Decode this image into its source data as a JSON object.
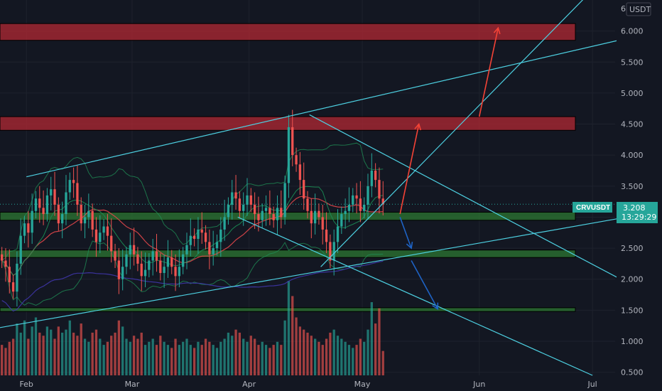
{
  "header": {
    "currency_label": "USDT",
    "top_tick_partial": "6"
  },
  "ticker": {
    "symbol": "CRVUSDT",
    "last_price": "3.208",
    "countdown": "13:29:29"
  },
  "colors": {
    "background": "#131722",
    "grid": "#1e222d",
    "up": "#26a69a",
    "down": "#ef5350",
    "resistance_zone": "#b22833",
    "support_zone": "#2e7d32",
    "trendline": "#4dd0e1",
    "arrow_up": "#f44336",
    "arrow_down": "#1e63c5",
    "ma_red": "#e0464a",
    "ma_green": "#1b8f55",
    "ma_purple": "#3f35a8",
    "bb": "#1f8c55"
  },
  "chart_data": {
    "type": "candlestick",
    "pair": "CRVUSDT",
    "quote_currency": "USDT",
    "ylim": [
      0.45,
      6.5
    ],
    "y_ticks": [
      "6.000",
      "5.500",
      "5.000",
      "4.500",
      "4.000",
      "3.500",
      "3.000",
      "2.500",
      "2.000",
      "1.500",
      "1.000",
      "0.500"
    ],
    "x_ticks": [
      "Feb",
      "Mar",
      "Apr",
      "May",
      "Jun",
      "Jul"
    ],
    "x_range": [
      "2022-01-25",
      "2022-07-07"
    ],
    "last_price": 3.208,
    "resistance_zones": [
      [
        5.85,
        6.12
      ],
      [
        4.4,
        4.62
      ]
    ],
    "support_zones": [
      [
        2.95,
        3.08
      ],
      [
        2.35,
        2.47
      ],
      [
        1.48,
        1.54
      ]
    ],
    "trend_lines": [
      {
        "from": [
          "2022-02-01",
          3.65
        ],
        "to": [
          "2022-07-10",
          5.88
        ]
      },
      {
        "from": [
          "2022-01-25",
          1.22
        ],
        "to": [
          "2022-07-10",
          3.0
        ]
      },
      {
        "from": [
          "2022-04-17",
          4.65
        ],
        "to": [
          "2022-07-10",
          1.95
        ]
      },
      {
        "from": [
          "2022-03-29",
          3.0
        ],
        "to": [
          "2022-07-01",
          0.45
        ]
      },
      {
        "from": [
          "2022-04-20",
          2.2
        ],
        "to": [
          "2022-06-30",
          6.6
        ]
      }
    ],
    "arrows": [
      {
        "direction": "up",
        "from": [
          "2022-05-11",
          3.05
        ],
        "to": [
          "2022-05-16",
          4.5
        ]
      },
      {
        "direction": "up",
        "from": [
          "2022-06-01",
          4.62
        ],
        "to": [
          "2022-06-06",
          6.05
        ]
      },
      {
        "direction": "down",
        "from": [
          "2022-05-11",
          3.0
        ],
        "to": [
          "2022-05-14",
          2.5
        ]
      },
      {
        "direction": "down",
        "from": [
          "2022-05-14",
          2.3
        ],
        "to": [
          "2022-05-21",
          1.52
        ]
      }
    ],
    "series": [
      {
        "kind": "ohlc",
        "start": "2022-01-25",
        "interval_days": 1,
        "open": [
          2.4,
          2.3,
          2.2,
          1.95,
          1.8,
          2.25,
          2.7,
          2.9,
          2.75,
          3.1,
          3.3,
          3.15,
          3.05,
          3.35,
          3.45,
          3.2,
          2.9,
          3.05,
          3.4,
          3.6,
          3.55,
          3.2,
          2.9,
          3.0,
          3.1,
          2.8,
          2.6,
          2.75,
          2.85,
          2.7,
          2.45,
          2.3,
          2.0,
          2.2,
          2.4,
          2.55,
          2.4,
          2.25,
          2.05,
          2.15,
          2.3,
          2.45,
          2.3,
          2.1,
          2.2,
          2.35,
          2.2,
          2.05,
          2.2,
          2.4,
          2.55,
          2.7,
          2.65,
          2.8,
          2.75,
          2.6,
          2.4,
          2.5,
          2.6,
          2.8,
          3.0,
          3.2,
          3.4,
          3.3,
          3.1,
          3.2,
          3.35,
          3.2,
          3.05,
          2.95,
          3.1,
          3.15,
          3.05,
          2.95,
          3.15,
          3.0,
          3.55,
          4.45,
          4.0,
          3.85,
          3.6,
          3.3,
          3.1,
          2.9,
          3.1,
          3.0,
          2.8,
          2.6,
          2.3,
          2.6,
          2.85,
          3.05,
          3.1,
          3.2,
          3.35,
          3.3,
          3.1,
          3.2,
          3.5,
          3.75,
          3.6,
          3.3
        ],
        "close": [
          2.3,
          2.2,
          1.95,
          1.8,
          2.25,
          2.7,
          2.9,
          2.75,
          3.1,
          3.3,
          3.15,
          3.05,
          3.35,
          3.45,
          3.2,
          2.9,
          3.05,
          3.4,
          3.6,
          3.55,
          3.2,
          2.9,
          3.0,
          3.1,
          2.8,
          2.6,
          2.75,
          2.85,
          2.7,
          2.45,
          2.3,
          2.0,
          2.2,
          2.4,
          2.55,
          2.4,
          2.25,
          2.05,
          2.15,
          2.3,
          2.45,
          2.3,
          2.1,
          2.2,
          2.35,
          2.2,
          2.05,
          2.2,
          2.4,
          2.55,
          2.7,
          2.65,
          2.8,
          2.75,
          2.6,
          2.4,
          2.5,
          2.6,
          2.8,
          3.0,
          3.2,
          3.4,
          3.3,
          3.1,
          3.2,
          3.35,
          3.2,
          3.05,
          2.95,
          3.1,
          3.15,
          3.05,
          2.95,
          3.15,
          3.0,
          3.55,
          4.45,
          4.0,
          3.85,
          3.6,
          3.3,
          3.1,
          2.9,
          3.1,
          3.0,
          2.8,
          2.6,
          2.3,
          2.6,
          2.85,
          3.05,
          3.1,
          3.2,
          3.35,
          3.3,
          3.1,
          3.2,
          3.5,
          3.75,
          3.6,
          3.3,
          3.208
        ],
        "volume": [
          0.5,
          0.45,
          0.55,
          0.6,
          0.85,
          0.7,
          0.9,
          0.6,
          0.8,
          0.95,
          0.7,
          0.65,
          0.8,
          0.75,
          0.6,
          0.8,
          0.7,
          0.75,
          0.9,
          0.7,
          0.65,
          0.85,
          0.6,
          0.55,
          0.7,
          0.75,
          0.6,
          0.5,
          0.55,
          0.65,
          0.7,
          0.9,
          0.8,
          0.6,
          0.55,
          0.65,
          0.6,
          0.7,
          0.5,
          0.55,
          0.6,
          0.5,
          0.65,
          0.55,
          0.5,
          0.45,
          0.6,
          0.5,
          0.55,
          0.6,
          0.5,
          0.45,
          0.55,
          0.5,
          0.6,
          0.55,
          0.5,
          0.45,
          0.55,
          0.6,
          0.7,
          0.65,
          0.75,
          0.7,
          0.6,
          0.55,
          0.65,
          0.6,
          0.5,
          0.55,
          0.5,
          0.45,
          0.5,
          0.55,
          0.5,
          0.9,
          1.55,
          1.3,
          0.95,
          0.8,
          0.75,
          0.7,
          0.65,
          0.6,
          0.55,
          0.5,
          0.6,
          0.7,
          0.75,
          0.65,
          0.6,
          0.55,
          0.5,
          0.45,
          0.5,
          0.6,
          0.55,
          0.75,
          1.2,
          0.85,
          1.1,
          0.4
        ]
      }
    ]
  }
}
